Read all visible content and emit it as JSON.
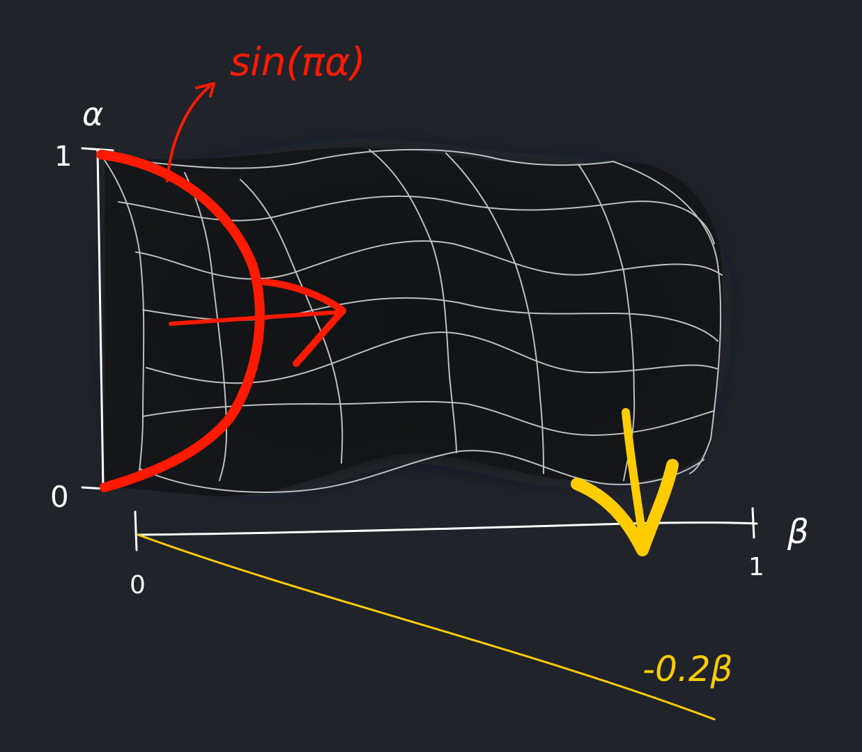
{
  "labels": {
    "alpha_axis": "α",
    "alpha_one": "1",
    "alpha_zero": "0",
    "beta_axis": "β",
    "beta_zero": "0",
    "beta_one": "1",
    "sin_expression": "sin(πα)",
    "neg_beta_expression": "-0.2β"
  },
  "colors": {
    "background": "#20232a",
    "mesh": "#cfd2d6",
    "axis": "#ffffff",
    "red_stroke": "#ff1a00",
    "yellow_stroke": "#ffcc00"
  }
}
